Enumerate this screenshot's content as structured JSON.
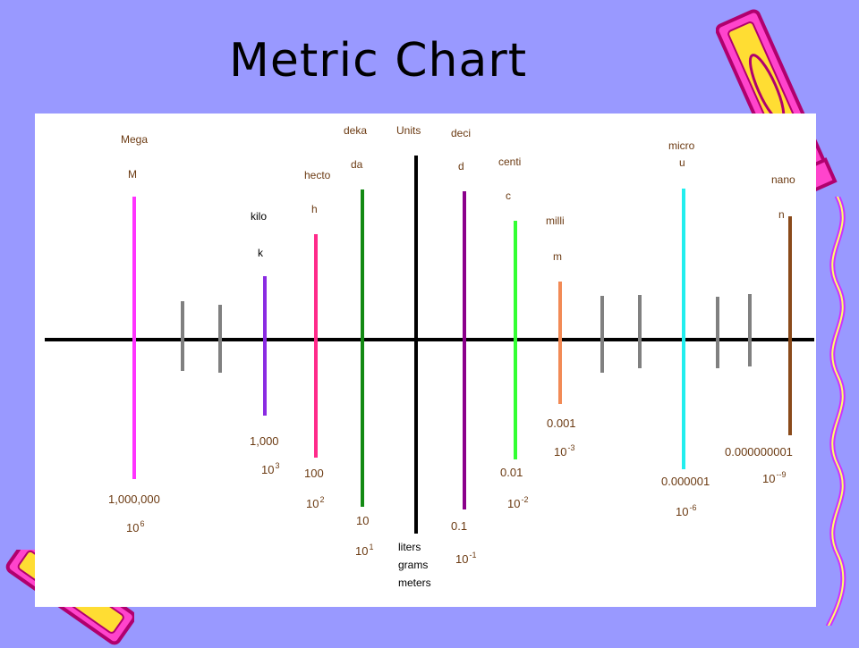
{
  "title": "Metric Chart",
  "colors": {
    "background": "#9999ff",
    "panel": "#ffffff",
    "axis": "#000000",
    "tick_gray": "#808080",
    "mega": "#ff33ff",
    "kilo": "#8a2be2",
    "hecto": "#ff2a8a",
    "deka": "#138a13",
    "units": "#000000",
    "deci": "#8b008b",
    "centi": "#33ff33",
    "milli": "#f28a55",
    "micro": "#22eeee",
    "nano": "#8a4a1a"
  },
  "prefixes": [
    {
      "key": "mega",
      "name": "Mega",
      "symbol": "M",
      "value": "1,000,000",
      "power": "10",
      "exponent": "6"
    },
    {
      "key": "kilo",
      "name": "kilo",
      "symbol": "k",
      "value": "1,000",
      "power": "10",
      "exponent": "3"
    },
    {
      "key": "hecto",
      "name": "hecto",
      "symbol": "h",
      "value": "100",
      "power": "10",
      "exponent": "2"
    },
    {
      "key": "deka",
      "name": "deka",
      "symbol": "da",
      "value": "10",
      "power": "10",
      "exponent": "1"
    },
    {
      "key": "units",
      "name": "Units",
      "symbol": "",
      "value": "",
      "power": "",
      "exponent": ""
    },
    {
      "key": "deci",
      "name": "deci",
      "symbol": "d",
      "value": "0.1",
      "power": "10",
      "exponent": "-1"
    },
    {
      "key": "centi",
      "name": "centi",
      "symbol": "c",
      "value": "0.01",
      "power": "10",
      "exponent": "-2"
    },
    {
      "key": "milli",
      "name": "milli",
      "symbol": "m",
      "value": "0.001",
      "power": "10",
      "exponent": "-3"
    },
    {
      "key": "micro",
      "name": "micro",
      "symbol": "u",
      "value": "0.000001",
      "power": "10",
      "exponent": "-6"
    },
    {
      "key": "nano",
      "name": "nano",
      "symbol": "n",
      "value": "0.000000001",
      "power": "10",
      "exponent": "--9"
    }
  ],
  "base_units": [
    "liters",
    "grams",
    "meters"
  ]
}
